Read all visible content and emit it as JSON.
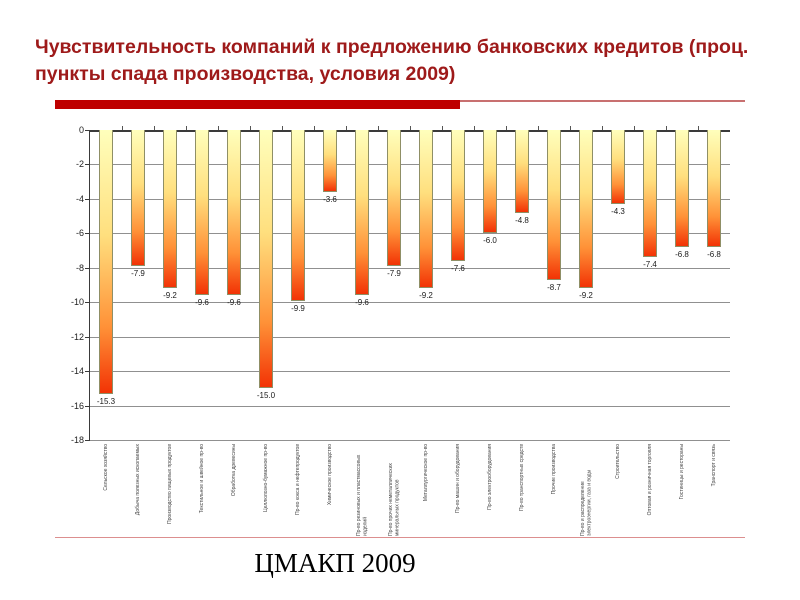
{
  "slide": {
    "title": "Чувствительность компаний к предложению банковских кредитов (проц. пункты спада производства, условия 2009)",
    "credit": "ЦМАКП 2009",
    "title_color": "#9E1A1A",
    "accent_bar_color": "#BE0000",
    "accent_line_color": "#C87070",
    "footer_line_color": "#DC8F8F"
  },
  "chart_data": {
    "type": "bar",
    "title": "",
    "xlabel": "",
    "ylabel": "",
    "ylim": [
      -18,
      0
    ],
    "ytick_step": 2,
    "grid": true,
    "legend": "none",
    "bar_gradient_top": "#FFFFBC",
    "bar_gradient_mid1": "#FFDF7E",
    "bar_gradient_mid2": "#FF9137",
    "bar_gradient_bottom": "#F23305",
    "bar_border_color": "#8F8F66",
    "categories": [
      "Сельское хозяйство",
      "Добыча полезных ископаемых",
      "Производство пищевых продуктов",
      "Текстильное и швейное пр-во",
      "Обработка древесины",
      "Целлюлозно-бумажное пр-во",
      "Пр-во кокса и нефтепродуктов",
      "Химическое производство",
      "Пр-во резиновых и пластмассовых изделий",
      "Пр-во прочих неметаллических минеральных продуктов",
      "Металлургическое пр-во",
      "Пр-во машин и оборудования",
      "Пр-во электрооборудования",
      "Пр-во транспортных средств",
      "Прочие производства",
      "Пр-во и распределение электроэнергии, газа и воды",
      "Строительство",
      "Оптовая и розничная торговля",
      "Гостиницы и рестораны",
      "Транспорт и связь"
    ],
    "values": [
      -15.3,
      -7.9,
      -9.2,
      -9.6,
      -9.6,
      -15.0,
      -9.9,
      -3.6,
      -9.6,
      -7.9,
      -9.2,
      -7.6,
      -6.0,
      -4.8,
      -8.7,
      -9.2,
      -4.3,
      -7.4,
      -6.8,
      -6.8
    ]
  }
}
